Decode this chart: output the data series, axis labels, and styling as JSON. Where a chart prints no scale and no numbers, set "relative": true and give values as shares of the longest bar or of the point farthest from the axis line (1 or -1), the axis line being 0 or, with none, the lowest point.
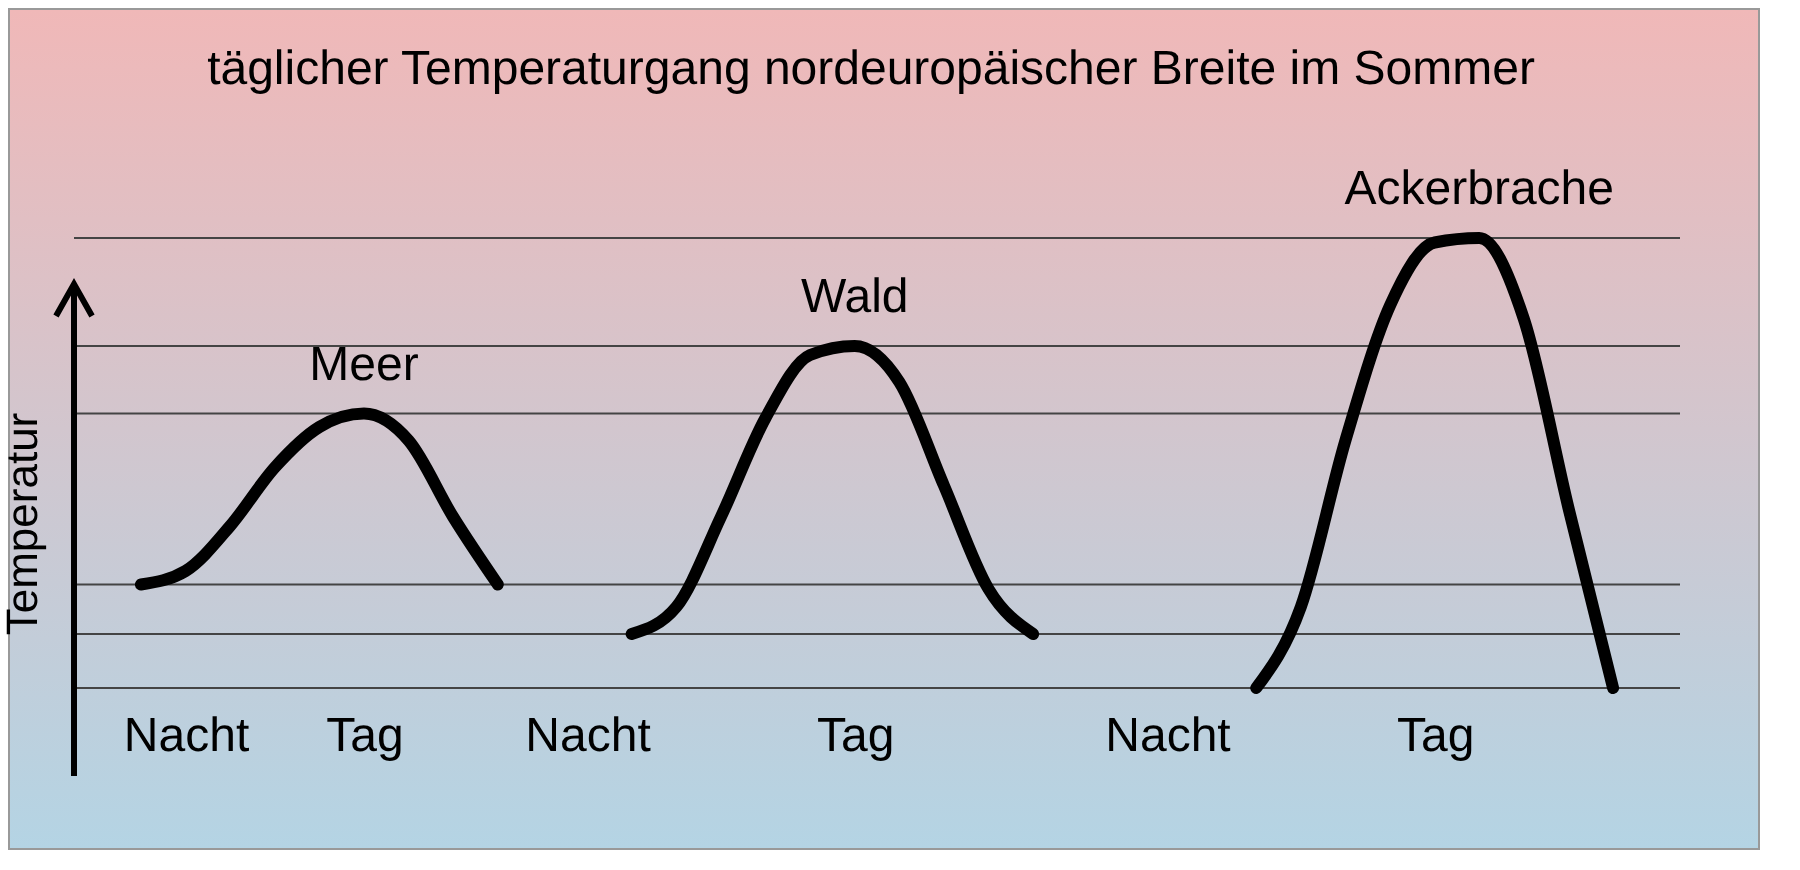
{
  "chart_data": {
    "type": "line",
    "title": "täglicher Temperaturgang nordeuropäischer Breite im Sommer",
    "ylabel": "Temperatur",
    "relative": true,
    "line_style": "solid",
    "marker": "none",
    "categories": [
      null,
      null,
      "Nacht",
      null,
      null,
      null,
      "Tag",
      null,
      null,
      null,
      null,
      "Nacht",
      null,
      null,
      null,
      null,
      null,
      "Tag",
      null,
      null,
      null,
      null,
      null,
      null,
      "Nacht",
      null,
      null,
      null,
      null,
      null,
      "Tag",
      null,
      null,
      null,
      null,
      null
    ],
    "series": [
      {
        "name": "Meer",
        "color": "#000000",
        "values": [
          null,
          0.23,
          0.26,
          0.36,
          0.49,
          0.58,
          0.61,
          0.55,
          0.38,
          0.23,
          null,
          null,
          null,
          null,
          null,
          null,
          null,
          null,
          null,
          null,
          null,
          null,
          null,
          null,
          null,
          null,
          null,
          null,
          null,
          null,
          null,
          null,
          null,
          null,
          null,
          null
        ]
      },
      {
        "name": "Wald",
        "color": "#000000",
        "values": [
          null,
          null,
          null,
          null,
          null,
          null,
          null,
          null,
          null,
          null,
          null,
          null,
          0.12,
          0.18,
          0.38,
          0.6,
          0.74,
          0.76,
          0.68,
          0.45,
          0.22,
          0.12,
          null,
          null,
          null,
          null,
          null,
          null,
          null,
          null,
          null,
          null,
          null,
          null,
          null,
          null
        ]
      },
      {
        "name": "Ackerbrache",
        "color": "#000000",
        "values": [
          null,
          null,
          null,
          null,
          null,
          null,
          null,
          null,
          null,
          null,
          null,
          null,
          null,
          null,
          null,
          null,
          null,
          null,
          null,
          null,
          null,
          null,
          null,
          null,
          null,
          null,
          0,
          0.18,
          0.55,
          0.85,
          0.99,
          1,
          0.82,
          0.4,
          0,
          null
        ]
      }
    ],
    "ref_lines": [
      {
        "axis": "y",
        "value": 0,
        "color": "#444444"
      },
      {
        "axis": "y",
        "value": 0.12,
        "color": "#444444"
      },
      {
        "axis": "y",
        "value": 0.23,
        "color": "#444444"
      },
      {
        "axis": "y",
        "value": 0.61,
        "color": "#444444"
      },
      {
        "axis": "y",
        "value": 0.76,
        "color": "#444444"
      },
      {
        "axis": "y",
        "value": 1,
        "color": "#444444"
      }
    ]
  }
}
